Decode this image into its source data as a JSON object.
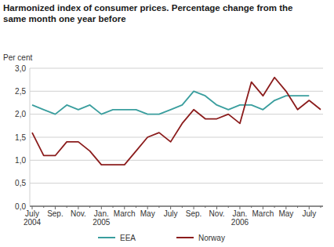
{
  "chart_data": {
    "type": "line",
    "title": "Harmonized index of consumer prices. Percentage change from the same month one year before",
    "y_label": "Per cent",
    "categories": [
      "July 2004",
      null,
      "Sep.",
      null,
      "Nov.",
      null,
      "Jan. 2005",
      null,
      "March",
      null,
      "May",
      null,
      "July",
      null,
      "Sep.",
      null,
      "Nov.",
      null,
      "Jan. 2006",
      null,
      "March",
      null,
      "May",
      null,
      "July",
      null
    ],
    "series": [
      {
        "name": "EEA",
        "color": "#3a9e9e",
        "values": [
          2.2,
          2.1,
          2.0,
          2.2,
          2.1,
          2.2,
          2.0,
          2.1,
          2.1,
          2.1,
          2.0,
          2.0,
          2.1,
          2.2,
          2.5,
          2.4,
          2.2,
          2.1,
          2.2,
          2.2,
          2.1,
          2.3,
          2.4,
          2.4,
          2.4,
          null
        ]
      },
      {
        "name": "Norway",
        "color": "#8b1c1c",
        "values": [
          1.6,
          1.1,
          1.1,
          1.4,
          1.4,
          1.2,
          0.9,
          0.9,
          0.9,
          1.2,
          1.5,
          1.6,
          1.4,
          1.8,
          2.1,
          1.9,
          1.9,
          2.0,
          1.8,
          2.7,
          2.4,
          2.8,
          2.5,
          2.1,
          2.3,
          2.1
        ]
      }
    ],
    "ylim": [
      0,
      3
    ],
    "yticks": [
      {
        "value": 0,
        "label": "0,0"
      },
      {
        "value": 0.5,
        "label": "0,5"
      },
      {
        "value": 1,
        "label": "1,0"
      },
      {
        "value": 1.5,
        "label": "1,5"
      },
      {
        "value": 2,
        "label": "2,0"
      },
      {
        "value": 2.5,
        "label": "2,5"
      },
      {
        "value": 3,
        "label": "3,0"
      }
    ],
    "grid": true,
    "legend": "bottom"
  }
}
